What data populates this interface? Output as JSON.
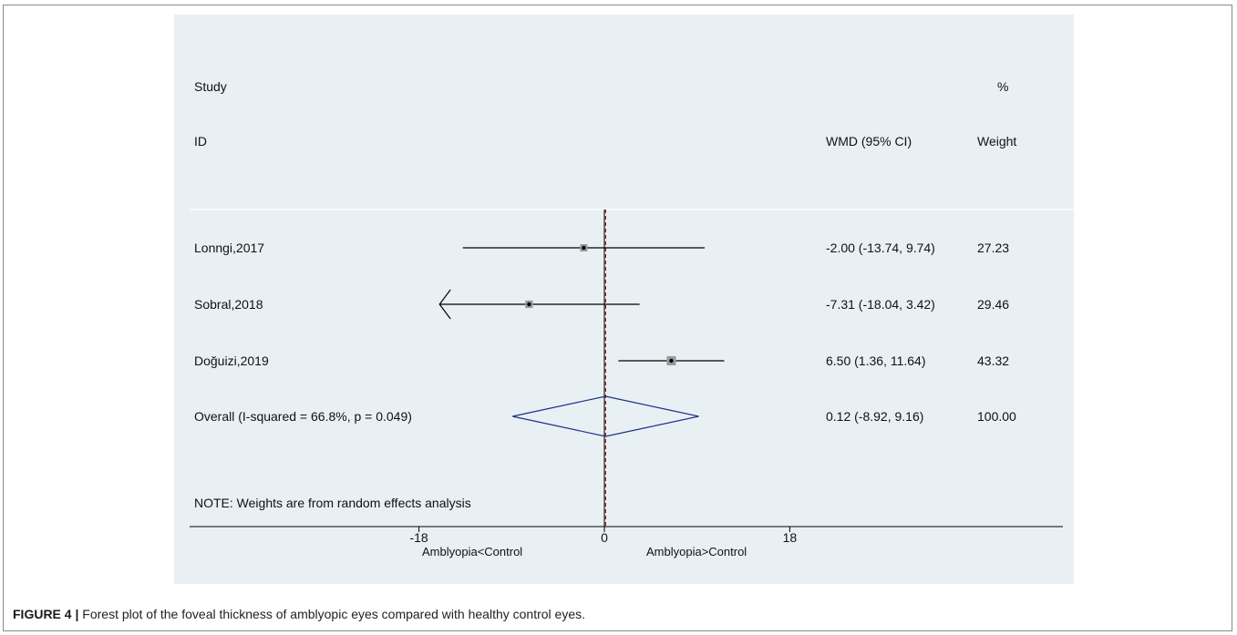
{
  "chart_data": {
    "type": "forest",
    "headers": {
      "study_line1": "Study",
      "study_line2": "ID",
      "effect": "WMD (95% CI)",
      "weight_line1": "%",
      "weight_line2": "Weight"
    },
    "studies": [
      {
        "id": "Lonngi,2017",
        "estimate": -2.0,
        "ci_low": -13.74,
        "ci_high": 9.74,
        "effect_label": "-2.00 (-13.74, 9.74)",
        "weight": 27.23,
        "weight_label": "27.23"
      },
      {
        "id": "Sobral,2018",
        "estimate": -7.31,
        "ci_low": -18.04,
        "ci_high": 3.42,
        "effect_label": "-7.31 (-18.04, 3.42)",
        "weight": 29.46,
        "weight_label": "29.46"
      },
      {
        "id": "Doğuizi,2019",
        "estimate": 6.5,
        "ci_low": 1.36,
        "ci_high": 11.64,
        "effect_label": "6.50 (1.36, 11.64)",
        "weight": 43.32,
        "weight_label": "43.32"
      }
    ],
    "overall": {
      "label": "Overall  (I-squared = 66.8%, p = 0.049)",
      "estimate": 0.12,
      "ci_low": -8.92,
      "ci_high": 9.16,
      "effect_label": "0.12 (-8.92, 9.16)",
      "weight_label": "100.00"
    },
    "note": "NOTE: Weights are from random effects analysis",
    "x_ticks": [
      {
        "value": -18,
        "label": "-18"
      },
      {
        "value": 0,
        "label": "0"
      },
      {
        "value": 18,
        "label": "18"
      }
    ],
    "xlim": [
      -18,
      18
    ],
    "x_left_label": "Amblyopia<Control",
    "x_right_label": "Amblyopia>Control",
    "colors": {
      "panel": "#e9f0f4",
      "diamond": "#1f2f8c",
      "null_line": "#000000",
      "overall_line": "#8b1a1a",
      "marker": "#9a9a9a"
    }
  },
  "caption": {
    "label": "FIGURE 4",
    "separator": " | ",
    "text": "Forest plot of the foveal thickness of amblyopic eyes compared with healthy control eyes."
  }
}
